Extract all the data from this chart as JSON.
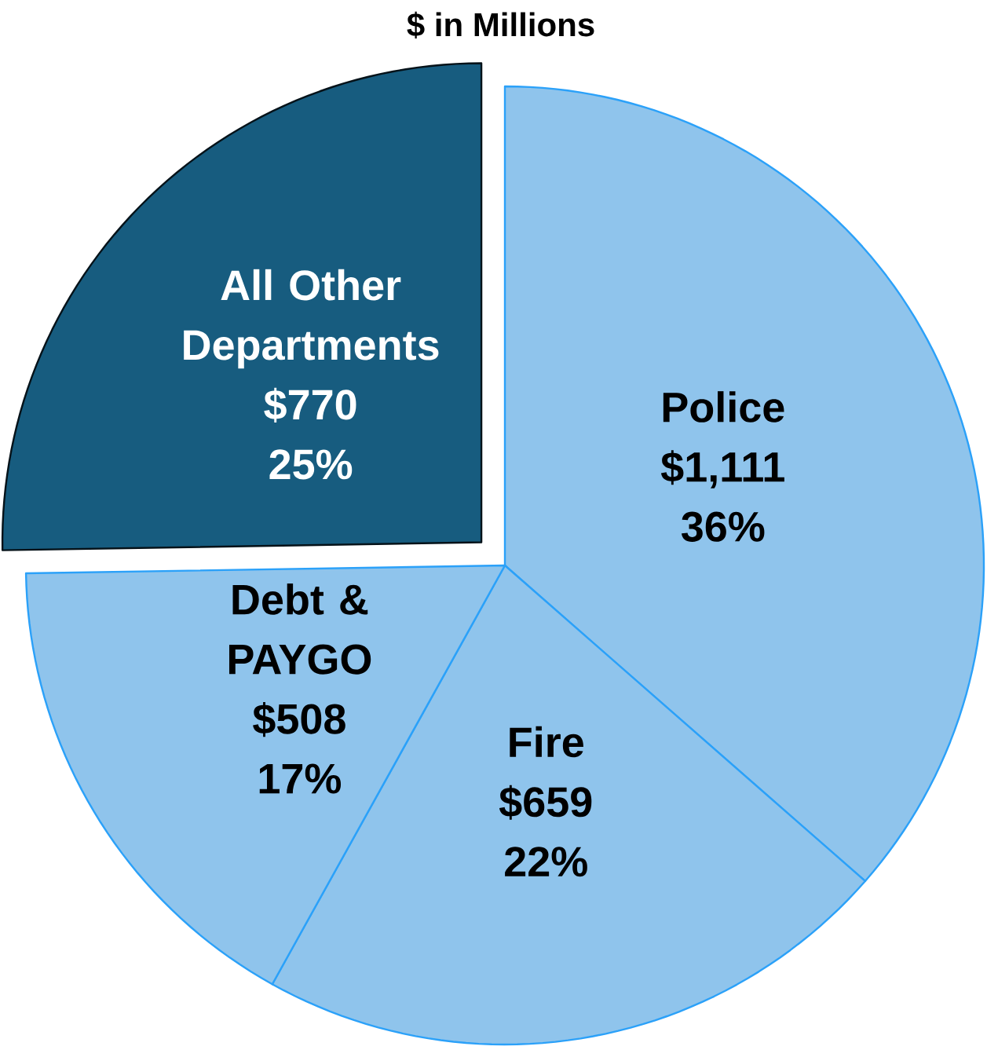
{
  "chart_data": {
    "type": "pie",
    "title": "$ in Millions",
    "categories": [
      "Police",
      "Fire",
      "Debt & PAYGO",
      "All Other Departments"
    ],
    "values": [
      1111,
      659,
      508,
      770
    ],
    "colors": [
      "#8fc4ec",
      "#8fc4ec",
      "#8fc4ec",
      "#175c7f"
    ],
    "value_labels": [
      "$1,111",
      "$659",
      "$508",
      "$770"
    ],
    "annotations": [
      "36%",
      "22%",
      "17%",
      "25%"
    ]
  }
}
